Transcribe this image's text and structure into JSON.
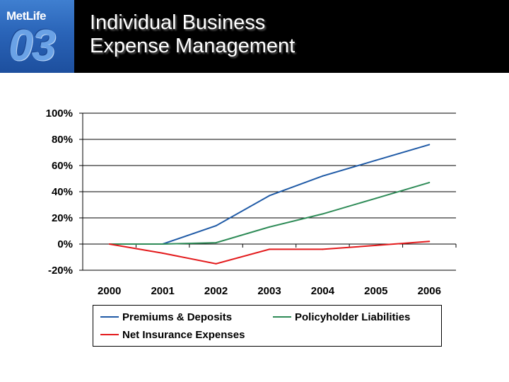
{
  "header": {
    "logo_name": "MetLife",
    "logo_number": "03",
    "title_line1": "Individual Business",
    "title_line2": "Expense Management",
    "background": "#000000"
  },
  "chart_data": {
    "type": "line",
    "title": "",
    "xlabel": "",
    "ylabel": "",
    "categories": [
      "2000",
      "2001",
      "2002",
      "2003",
      "2004",
      "2005",
      "2006"
    ],
    "yticks": [
      "100%",
      "80%",
      "60%",
      "40%",
      "20%",
      "0%",
      "-20%"
    ],
    "ylim": [
      -20,
      100
    ],
    "y_unit": "%",
    "grid": true,
    "legend_position": "bottom",
    "series": [
      {
        "name": "Premiums & Deposits",
        "color": "#1f5aa6",
        "values": [
          0,
          0,
          14,
          37,
          52,
          64,
          76
        ]
      },
      {
        "name": "Policyholder Liabilities",
        "color": "#2e8b57",
        "values": [
          0,
          0,
          1,
          13,
          23,
          35,
          47
        ]
      },
      {
        "name": "Net Insurance Expenses",
        "color": "#e31a1c",
        "values": [
          0,
          -7,
          -15,
          -4,
          -4,
          -1,
          2
        ]
      }
    ]
  }
}
